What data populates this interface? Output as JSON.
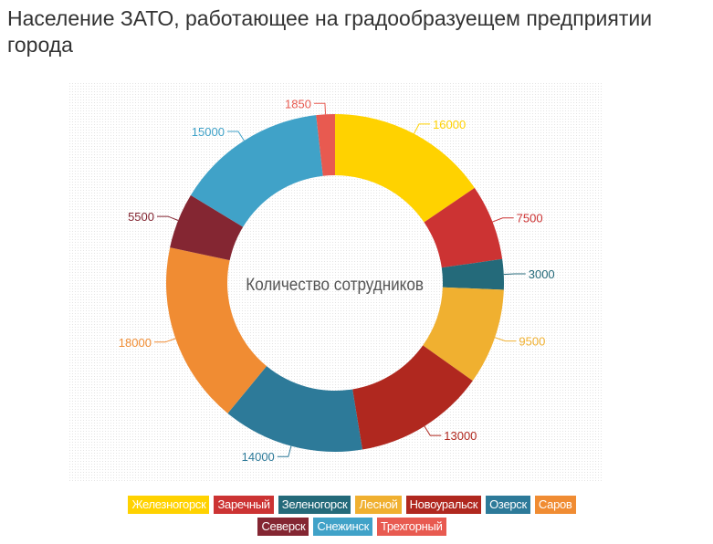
{
  "title": "Население ЗАТО, работающее на градообразуещем предприятии города",
  "chart_data": {
    "type": "pie",
    "variant": "donut",
    "center_label": "Количество сотрудников",
    "categories": [
      "Железногорск",
      "Заречный",
      "Зеленогорск",
      "Лесной",
      "Новоуральск",
      "Озерск",
      "Саров",
      "Северск",
      "Снежинск",
      "Трехгорный"
    ],
    "values": [
      16000,
      7500,
      3000,
      9500,
      13000,
      14000,
      18000,
      5500,
      15000,
      1850
    ],
    "colors": [
      "#FFD200",
      "#CC3333",
      "#246A7A",
      "#F0B030",
      "#B0281F",
      "#2D7A99",
      "#F08C33",
      "#842632",
      "#40A2C8",
      "#E85A50"
    ],
    "legend_position": "bottom"
  }
}
